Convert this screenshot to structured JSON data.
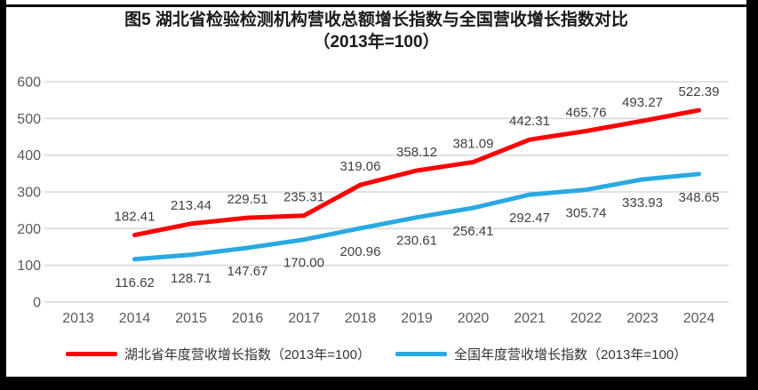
{
  "frame": {
    "background": "#ffffff",
    "border_color": "#000000"
  },
  "chart_data": {
    "type": "line",
    "title": "图5 湖北省检验检测机构营收总额增长指数与全国营收增长指数对比",
    "subtitle": "（2013年=100）",
    "categories": [
      "2013",
      "2014",
      "2015",
      "2016",
      "2017",
      "2018",
      "2019",
      "2020",
      "2021",
      "2022",
      "2023",
      "2024"
    ],
    "series": [
      {
        "name": "湖北省年度营收增长指数（2013年=100）",
        "color": "#ff0000",
        "label_position": "above",
        "values": [
          null,
          182.41,
          213.44,
          229.51,
          235.31,
          319.06,
          358.12,
          381.09,
          442.31,
          465.76,
          493.27,
          522.39
        ]
      },
      {
        "name": "全国年度营收增长指数（2013年=100）",
        "color": "#29a9e1",
        "label_position": "below",
        "values": [
          null,
          116.62,
          128.71,
          147.67,
          170.0,
          200.96,
          230.61,
          256.41,
          292.47,
          305.74,
          333.93,
          348.65
        ]
      }
    ],
    "ylim": [
      0,
      600
    ],
    "ytick_step": 100,
    "yticks": [
      "0",
      "100",
      "200",
      "300",
      "400",
      "500",
      "600"
    ],
    "grid": true,
    "legend_position": "bottom",
    "gridline_color": "#d9d9d9",
    "axis_label_color": "#595959",
    "data_label_color": "#404040",
    "label_decimals": 2
  }
}
